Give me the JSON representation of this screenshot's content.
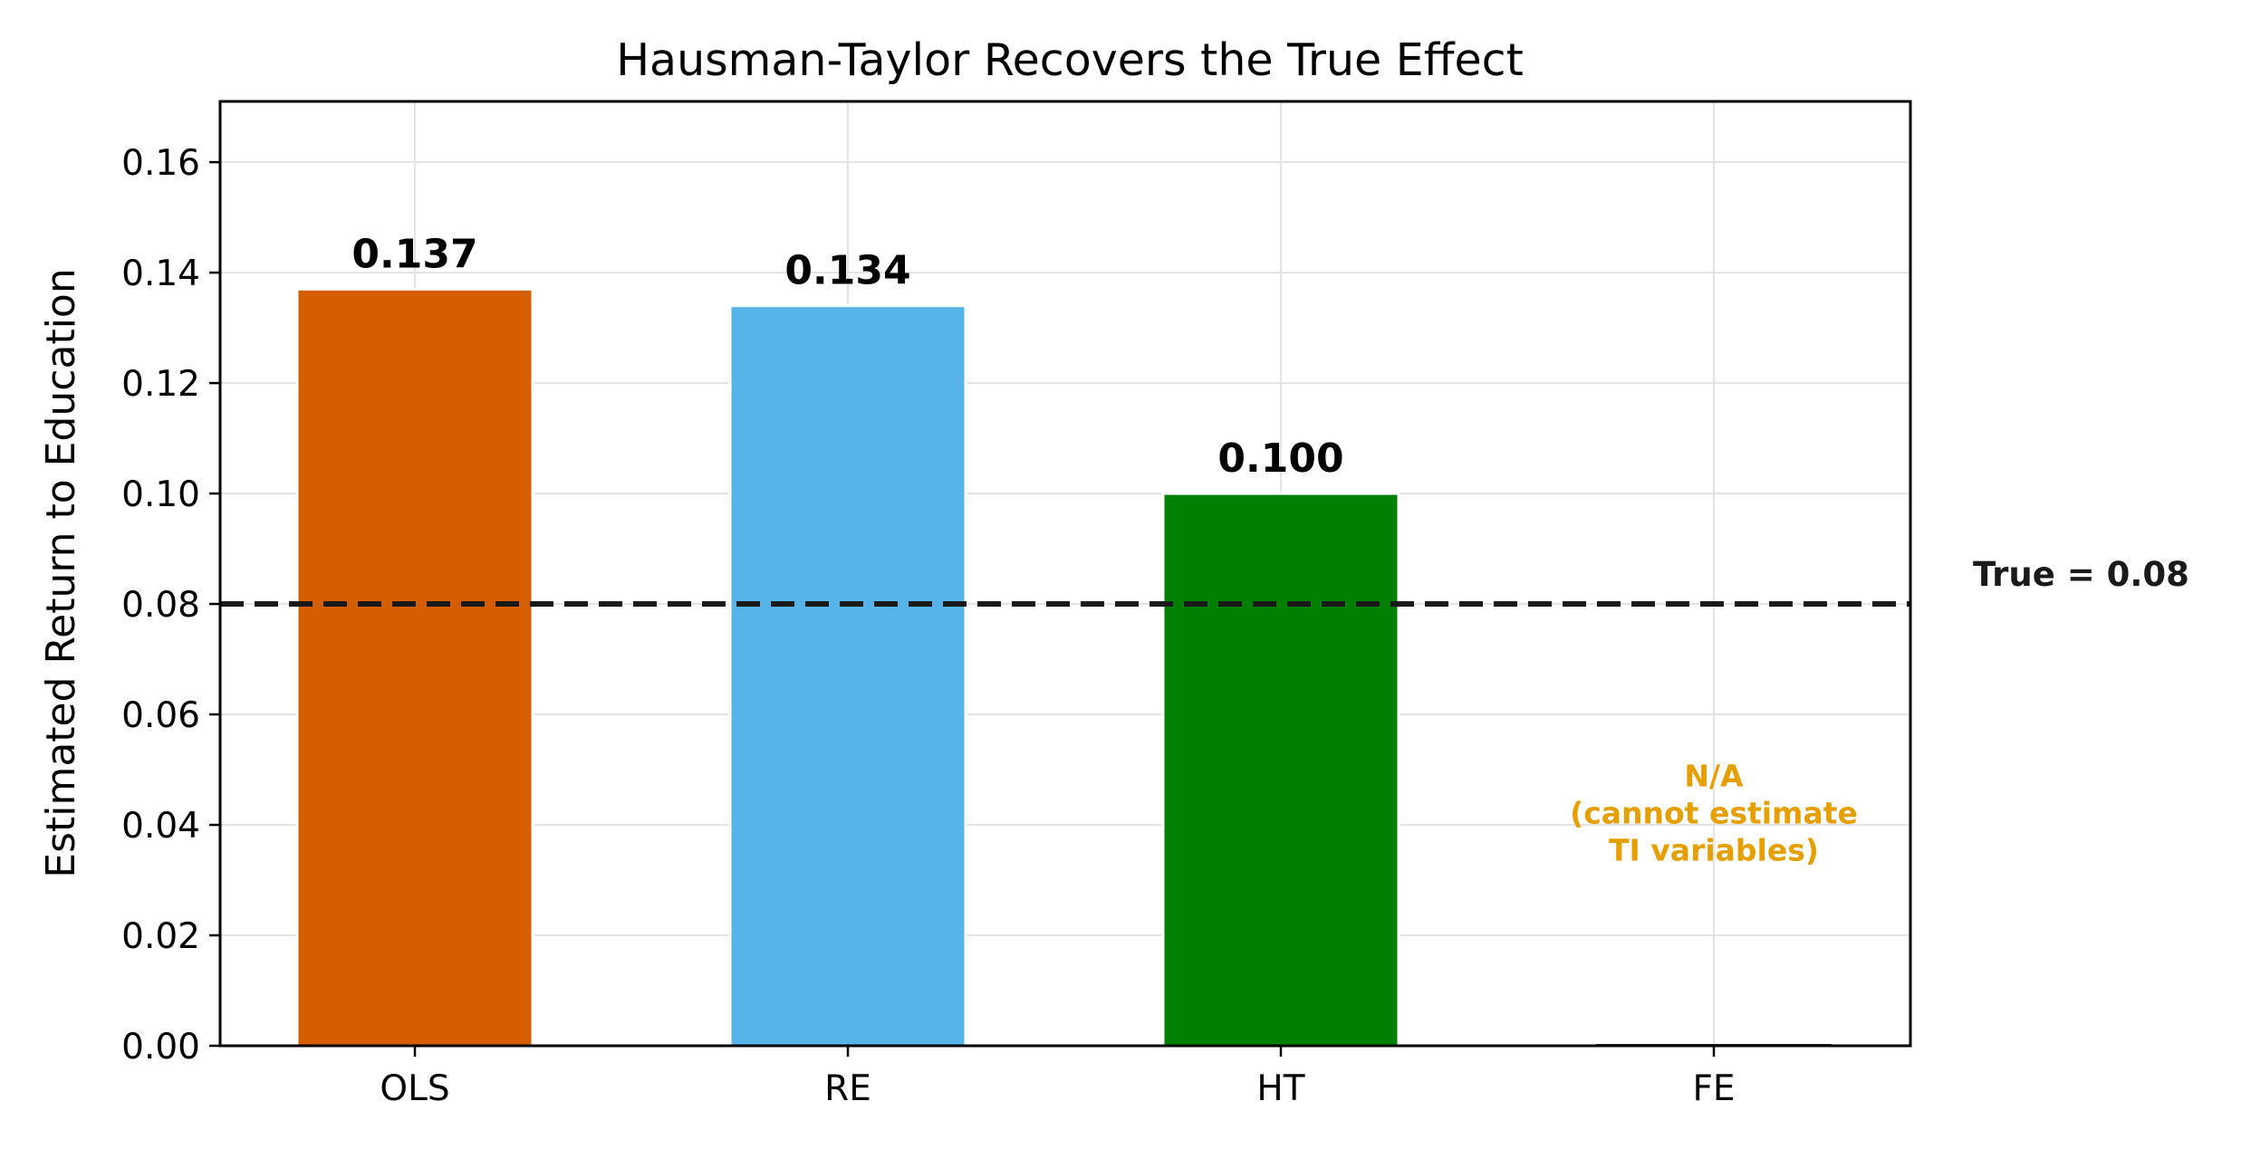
{
  "chart_data": {
    "type": "bar",
    "title": "Hausman-Taylor Recovers the True Effect",
    "xlabel": "",
    "ylabel": "Estimated Return to Education",
    "categories": [
      "OLS",
      "RE",
      "HT",
      "FE"
    ],
    "values": [
      0.137,
      0.134,
      0.1,
      null
    ],
    "value_labels": [
      "0.137",
      "0.134",
      "0.100",
      ""
    ],
    "bar_colors": [
      "#D55E00",
      "#56B4E9",
      "#008000",
      "#E69F00"
    ],
    "ylim": [
      0,
      0.171
    ],
    "yticks": [
      "0.00",
      "0.02",
      "0.04",
      "0.06",
      "0.08",
      "0.10",
      "0.12",
      "0.14",
      "0.16"
    ],
    "grid": true,
    "reference_line": {
      "value": 0.08,
      "label": "True = 0.08",
      "style": "dashed",
      "color": "#1a1a1a"
    },
    "na_annotation": {
      "category": "FE",
      "lines": [
        "N/A",
        "(cannot estimate",
        "TI variables)"
      ],
      "color": "#E69F00"
    }
  }
}
